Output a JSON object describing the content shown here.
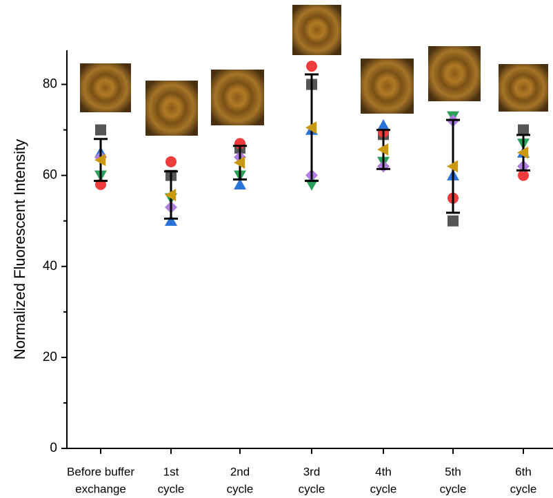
{
  "chart_data": {
    "type": "scatter",
    "y_label": "Normalized Fluorescent Intensity",
    "categories": [
      [
        "Before buffer",
        "exchange"
      ],
      [
        "1st",
        "cycle"
      ],
      [
        "2nd",
        "cycle"
      ],
      [
        "3rd",
        "cycle"
      ],
      [
        "4th",
        "cycle"
      ],
      [
        "5th",
        "cycle"
      ],
      [
        "6th",
        "cycle"
      ]
    ],
    "ylim": [
      0,
      87.5
    ],
    "yticks": [
      0,
      20,
      40,
      60,
      80
    ],
    "yminorticks": [
      10,
      30,
      50,
      70
    ],
    "series": [
      {
        "marker": "square",
        "color": "#555555",
        "values": [
          70,
          60,
          66,
          80,
          69,
          50,
          70
        ]
      },
      {
        "marker": "circle",
        "color": "#ef3b3b",
        "values": [
          58,
          63,
          67,
          84,
          69.5,
          55,
          60
        ]
      },
      {
        "marker": "triangle-up",
        "color": "#2a73d9",
        "values": [
          65,
          50,
          58,
          70,
          71,
          60,
          65
        ]
      },
      {
        "marker": "triangle-down",
        "color": "#2aa05a",
        "values": [
          60,
          55,
          60,
          58,
          63,
          73,
          67
        ]
      },
      {
        "marker": "diamond",
        "color": "#b07ee0",
        "values": [
          64,
          53,
          64,
          60,
          62,
          72,
          62
        ]
      },
      {
        "marker": "triangle-left",
        "color": "#c99a10",
        "values": [
          63.4,
          55.7,
          62.8,
          70.5,
          65.7,
          62,
          65
        ],
        "errors": [
          4.6,
          5.2,
          3.7,
          11.7,
          4.3,
          10.2,
          3.9
        ]
      }
    ]
  }
}
